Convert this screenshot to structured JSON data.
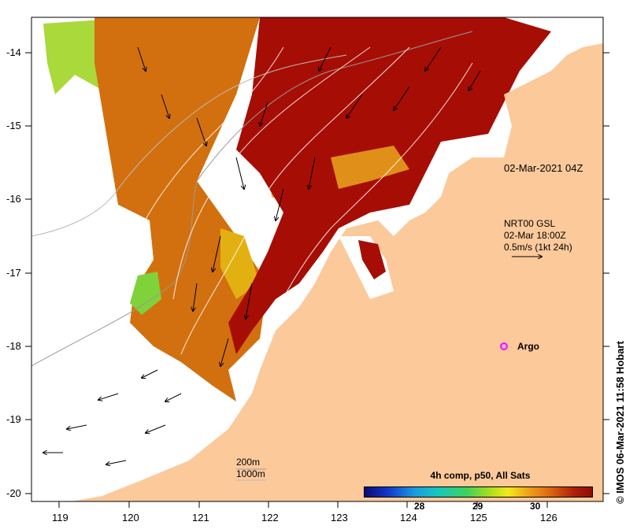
{
  "map": {
    "lon_ticks": [
      "119",
      "120",
      "121",
      "122",
      "123",
      "124",
      "125",
      "126"
    ],
    "lat_ticks": [
      "-14",
      "-15",
      "-16",
      "-17",
      "-18",
      "-19",
      "-20"
    ],
    "timestamp": "02-Mar-2021 04Z",
    "velocity_label": {
      "line1": "NRT00 GSL",
      "line2": "02-Mar 18:00Z",
      "line3": "0.5m/s (1kt 24h)"
    },
    "argo_label": "Argo",
    "depth_legend": [
      "200m",
      "1000m"
    ],
    "credit": "© IMOS 06-Mar-2021 11:58 Hobart",
    "colorbar": {
      "title": "4h comp, p50, All Sats",
      "ticks": [
        "28",
        "29",
        "30"
      ]
    },
    "colors": {
      "land": "#fcc99a",
      "warm_sst": "#a60e05",
      "mid_sst": "#d2700f",
      "cool_sst": "#8ed23a",
      "argo": "#e020e0"
    }
  }
}
